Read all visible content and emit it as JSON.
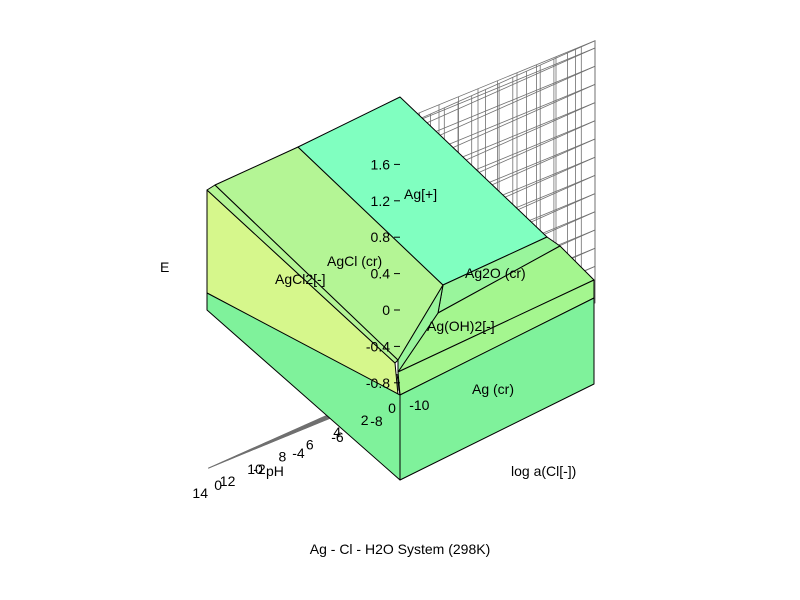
{
  "chart_data": {
    "type": "surface-3d",
    "title": "Ag - Cl - H2O System (298K)",
    "zlabel": "E",
    "xlabel": "pH",
    "ylabel": "log a(Cl[-])",
    "xlim": [
      0,
      14
    ],
    "ylim": [
      0,
      -10
    ],
    "zlim": [
      -0.8,
      1.6
    ],
    "z_ticks": [
      "1.6",
      "1.2",
      "0.8",
      "0.4",
      "0",
      "-0.4",
      "-0.8"
    ],
    "x_ticks": [
      "0",
      "2",
      "4",
      "6",
      "8",
      "10",
      "12",
      "14"
    ],
    "y_ticks": [
      "0",
      "-2",
      "-4",
      "-6",
      "-8",
      "-10"
    ],
    "grid": true,
    "regions": [
      {
        "name": "Ag[+]",
        "color": "#80ffc0"
      },
      {
        "name": "AgCl (cr)",
        "color": "#b4f595"
      },
      {
        "name": "AgCl2[-]",
        "color": "#d6f78c"
      },
      {
        "name": "Ag2O (cr)",
        "color": "#99f59c"
      },
      {
        "name": "Ag(OH)2[-]",
        "color": "#a4f68f"
      },
      {
        "name": "Ag (cr)",
        "color": "#7ff29b"
      }
    ]
  }
}
